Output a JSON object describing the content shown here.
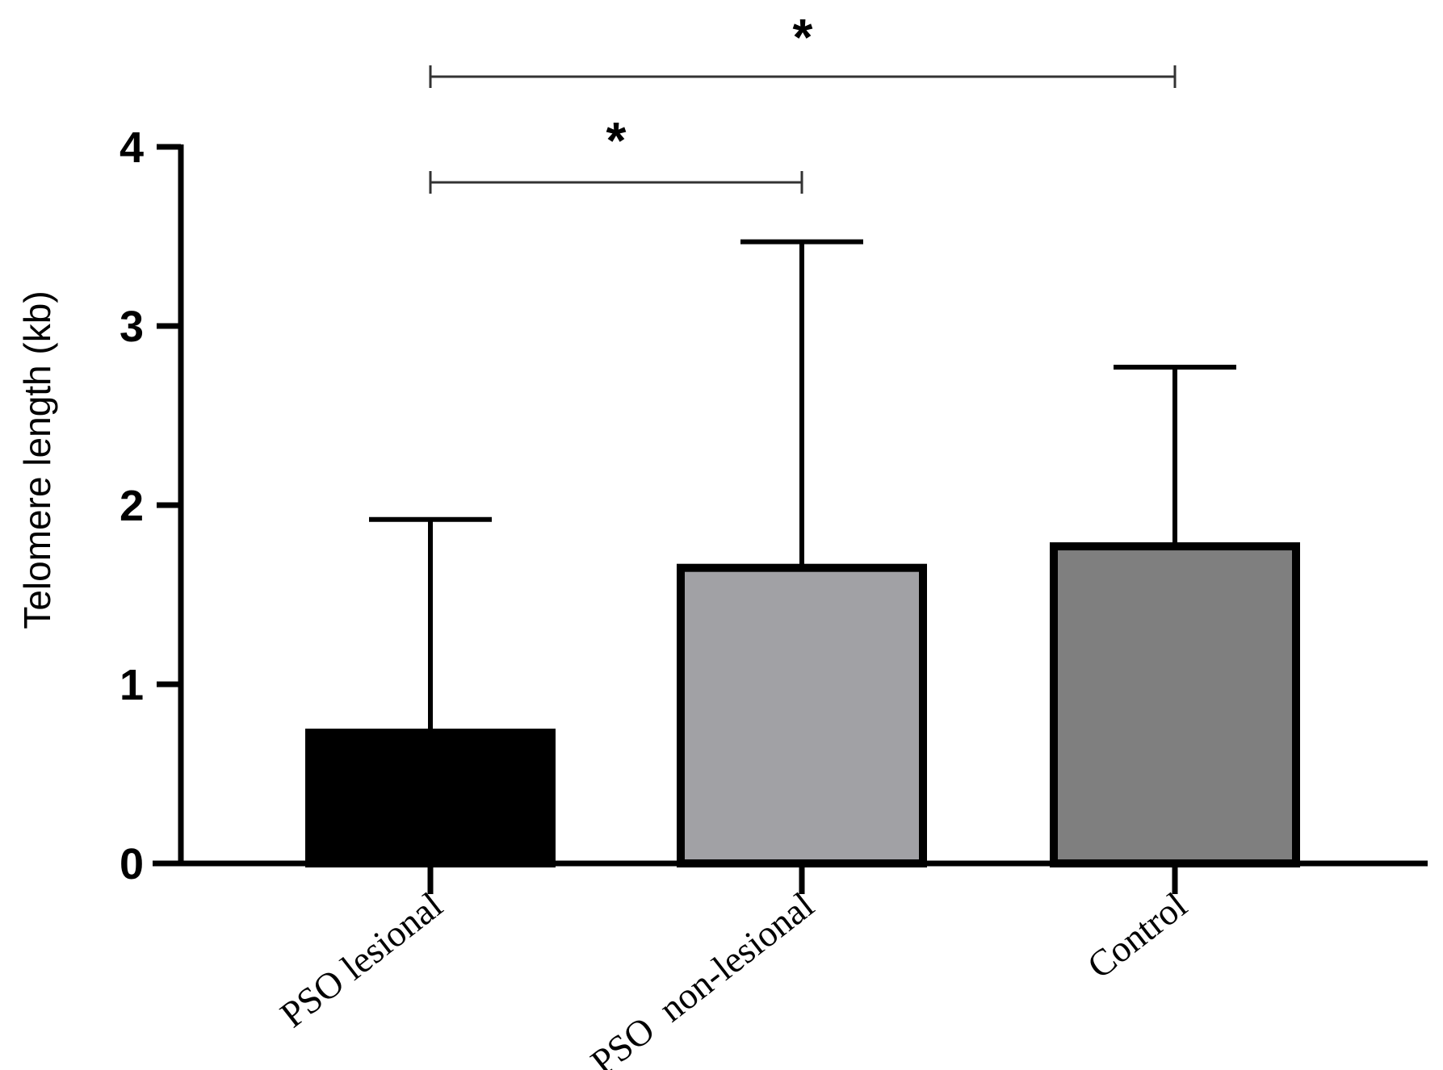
{
  "chart_data": {
    "type": "bar",
    "title": "",
    "xlabel": "",
    "ylabel": "Telomere length (kb)",
    "ylim": [
      0,
      4
    ],
    "yticks": [
      "0",
      "1",
      "2",
      "3",
      "4"
    ],
    "categories": [
      "PSO lesional",
      "PSO  non-lesional",
      "Control"
    ],
    "values": [
      0.73,
      1.65,
      1.77
    ],
    "error_upper": [
      1.92,
      3.47,
      2.77
    ],
    "colors": [
      "#000000",
      "#a1a1a5",
      "#7f7f7f"
    ],
    "significance": [
      {
        "from": 0,
        "to": 2,
        "label": "*"
      },
      {
        "from": 0,
        "to": 1,
        "label": "*"
      }
    ]
  }
}
